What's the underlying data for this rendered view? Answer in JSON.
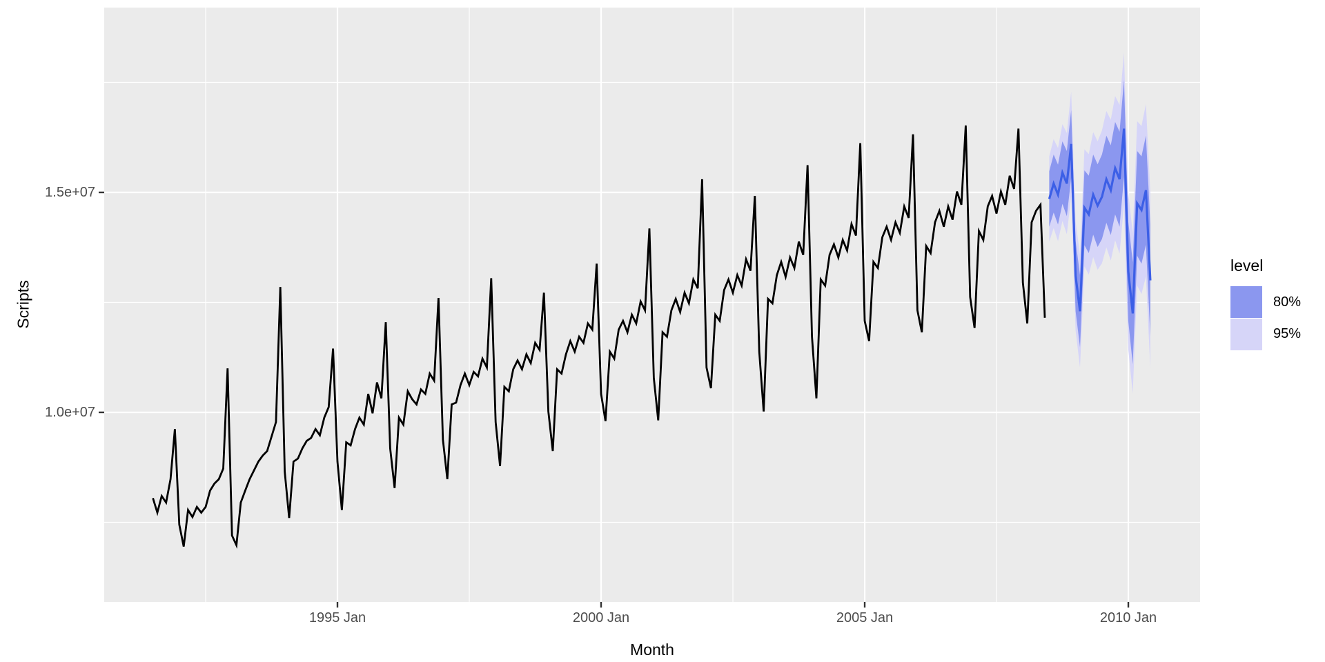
{
  "chart_data": {
    "type": "line",
    "title": "",
    "xlabel": "Month",
    "ylabel": "Scripts",
    "unit": "millions of scripts (axis shown in scientific notation)",
    "grid": true,
    "legend_position": "right",
    "legend": {
      "title": "level",
      "entries": [
        {
          "label": "80%",
          "color": "#8b97ef"
        },
        {
          "label": "95%",
          "color": "#d6d5f8"
        }
      ]
    },
    "colors": {
      "panel_background": "#ebebeb",
      "gridline": "#ffffff",
      "axis_text": "#4d4d4d",
      "tick_mark": "#333333",
      "historical_line": "#000000",
      "forecast_line": "#3c5fe6",
      "band_80": "#8b97ef",
      "band_95": "#d6d5f8"
    },
    "x_ticks": [
      {
        "t": 1995.0,
        "label": "1995 Jan"
      },
      {
        "t": 2000.0,
        "label": "2000 Jan"
      },
      {
        "t": 2005.0,
        "label": "2005 Jan"
      },
      {
        "t": 2010.0,
        "label": "2010 Jan"
      }
    ],
    "x_minor_ticks": [
      1992.5,
      1997.5,
      2002.5,
      2007.5
    ],
    "y_ticks": [
      {
        "value_millions": 10,
        "label": "1.0e+07"
      },
      {
        "value_millions": 15,
        "label": "1.5e+07"
      }
    ],
    "y_minor_ticks_millions": [
      7.5,
      12.5,
      17.5
    ],
    "x_domain_years": [
      1990.576,
      2011.361
    ],
    "y_domain_millions": [
      5.689,
      19.201
    ],
    "historical_start": {
      "year": 1991,
      "month": "Jul"
    },
    "historical_millions": [
      8.05,
      7.72,
      8.1,
      7.95,
      8.48,
      9.62,
      7.45,
      6.95,
      7.78,
      7.62,
      7.85,
      7.72,
      7.85,
      8.22,
      8.38,
      8.48,
      8.72,
      11.0,
      7.2,
      6.98,
      7.95,
      8.22,
      8.48,
      8.68,
      8.88,
      9.02,
      9.12,
      9.45,
      9.78,
      12.85,
      8.65,
      7.6,
      8.88,
      8.95,
      9.18,
      9.35,
      9.42,
      9.62,
      9.48,
      9.88,
      10.12,
      11.45,
      8.88,
      7.78,
      9.32,
      9.25,
      9.62,
      9.88,
      9.72,
      10.42,
      9.98,
      10.68,
      10.32,
      12.05,
      9.18,
      8.28,
      9.88,
      9.72,
      10.48,
      10.3,
      10.18,
      10.52,
      10.42,
      10.88,
      10.72,
      12.6,
      9.38,
      8.48,
      10.18,
      10.22,
      10.62,
      10.88,
      10.62,
      10.92,
      10.82,
      11.22,
      11.02,
      13.05,
      9.78,
      8.78,
      10.58,
      10.48,
      10.98,
      11.18,
      10.98,
      11.32,
      11.12,
      11.58,
      11.42,
      12.72,
      10.02,
      9.12,
      10.98,
      10.88,
      11.32,
      11.62,
      11.38,
      11.72,
      11.58,
      12.02,
      11.88,
      13.38,
      10.42,
      9.8,
      11.38,
      11.22,
      11.88,
      12.08,
      11.82,
      12.22,
      12.02,
      12.52,
      12.32,
      14.18,
      10.78,
      9.82,
      11.82,
      11.72,
      12.32,
      12.58,
      12.28,
      12.72,
      12.48,
      13.02,
      12.82,
      15.3,
      11.02,
      10.55,
      12.22,
      12.08,
      12.78,
      13.02,
      12.72,
      13.12,
      12.88,
      13.48,
      13.22,
      14.92,
      11.38,
      10.02,
      12.58,
      12.48,
      13.12,
      13.42,
      13.08,
      13.52,
      13.28,
      13.88,
      13.58,
      15.62,
      11.72,
      10.32,
      13.02,
      12.88,
      13.58,
      13.82,
      13.52,
      13.92,
      13.68,
      14.28,
      14.02,
      16.12,
      12.08,
      11.62,
      13.42,
      13.28,
      13.98,
      14.22,
      13.92,
      14.32,
      14.08,
      14.68,
      14.42,
      16.32,
      12.32,
      11.82,
      13.78,
      13.62,
      14.32,
      14.58,
      14.22,
      14.68,
      14.38,
      15.02,
      14.72,
      16.52,
      12.62,
      11.92,
      14.12,
      13.92,
      14.68,
      14.92,
      14.52,
      15.02,
      14.72,
      15.38,
      15.08,
      16.45,
      12.95,
      12.02,
      14.32,
      14.58,
      14.72,
      12.15
    ],
    "forecast_start": {
      "year": 2008,
      "month": "Jul"
    },
    "forecast": {
      "mean_millions": [
        14.85,
        15.2,
        14.95,
        15.45,
        15.2,
        16.1,
        13.1,
        12.3,
        14.65,
        14.5,
        14.95,
        14.7,
        14.9,
        15.3,
        15.05,
        15.55,
        15.3,
        16.45,
        13.2,
        12.25,
        14.75,
        14.6,
        15.05,
        13.0
      ],
      "lo80_millions": [
        14.22,
        14.54,
        14.27,
        14.74,
        14.46,
        15.33,
        12.3,
        11.48,
        13.8,
        13.62,
        14.04,
        13.76,
        13.94,
        14.31,
        14.03,
        14.5,
        14.22,
        15.35,
        12.07,
        11.09,
        13.56,
        13.38,
        13.81,
        11.73
      ],
      "hi80_millions": [
        15.48,
        15.86,
        15.63,
        16.16,
        15.94,
        16.87,
        13.9,
        13.12,
        15.5,
        15.38,
        15.86,
        15.64,
        15.86,
        16.29,
        16.07,
        16.6,
        16.38,
        17.55,
        14.33,
        13.41,
        15.94,
        15.82,
        16.29,
        14.27
      ],
      "lo95_millions": [
        13.88,
        14.19,
        13.89,
        14.35,
        14.05,
        14.91,
        11.86,
        11.02,
        13.32,
        13.13,
        13.53,
        13.24,
        13.39,
        13.75,
        13.45,
        13.91,
        13.61,
        14.72,
        11.42,
        10.43,
        12.88,
        12.69,
        13.09,
        11.0
      ],
      "hi95_millions": [
        15.82,
        16.21,
        16.01,
        16.55,
        16.35,
        17.29,
        14.34,
        13.58,
        15.98,
        15.87,
        16.37,
        16.16,
        16.41,
        16.85,
        16.65,
        17.19,
        16.99,
        18.18,
        14.98,
        14.07,
        16.62,
        16.51,
        17.01,
        15.0
      ]
    }
  }
}
